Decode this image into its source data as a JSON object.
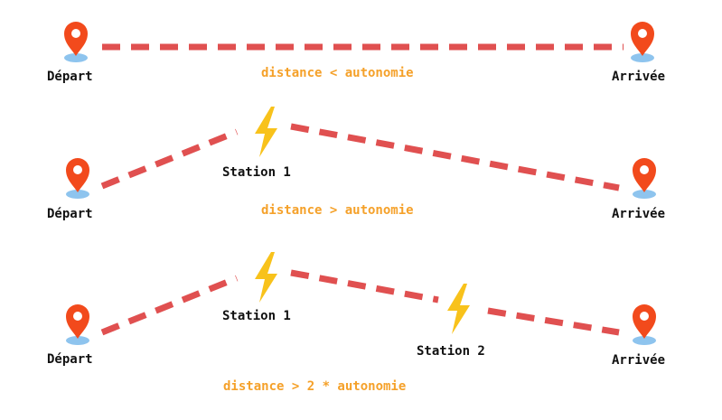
{
  "colors": {
    "route": "#e05050",
    "pin": "#f24a1c",
    "pin_shadow": "#8ec4ee",
    "bolt": "#f8c21b",
    "condition_text": "#f5a12a",
    "label_text": "#111111"
  },
  "icons": {
    "endpoint": "map-pin-icon",
    "station": "lightning-bolt-icon"
  },
  "scenarios": [
    {
      "start_label": "Départ",
      "end_label": "Arrivée",
      "condition": "distance < autonomie",
      "stations": []
    },
    {
      "start_label": "Départ",
      "end_label": "Arrivée",
      "condition": "distance > autonomie",
      "stations": [
        {
          "label": "Station 1"
        }
      ]
    },
    {
      "start_label": "Départ",
      "end_label": "Arrivée",
      "condition": "distance > 2 * autonomie",
      "stations": [
        {
          "label": "Station 1"
        },
        {
          "label": "Station 2"
        }
      ]
    }
  ]
}
